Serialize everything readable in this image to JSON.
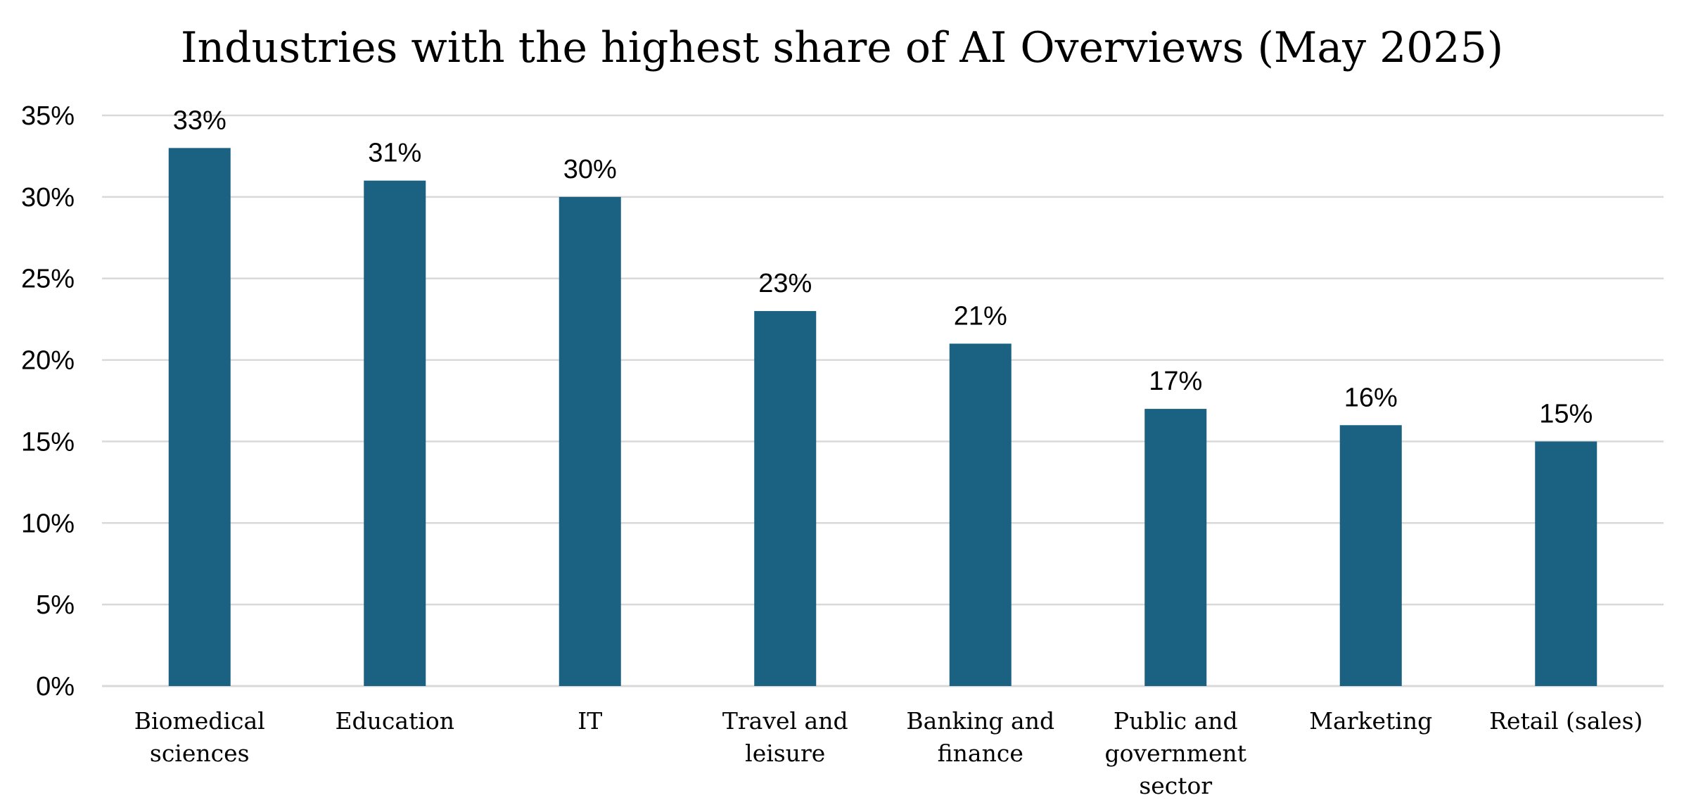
{
  "chart_data": {
    "type": "bar",
    "title": "Industries with the highest share of AI Overviews (May 2025)",
    "xlabel": "",
    "ylabel": "",
    "categories": [
      [
        "Biomedical",
        "sciences"
      ],
      [
        "Education"
      ],
      [
        "IT"
      ],
      [
        "Travel and",
        "leisure"
      ],
      [
        "Banking and",
        "finance"
      ],
      [
        "Public and",
        "government",
        "sector"
      ],
      [
        "Marketing"
      ],
      [
        "Retail (sales)"
      ]
    ],
    "values": [
      33,
      31,
      30,
      23,
      21,
      17,
      16,
      15
    ],
    "data_labels": [
      "33%",
      "31%",
      "30%",
      "23%",
      "21%",
      "17%",
      "16%",
      "15%"
    ],
    "ylim": [
      0,
      35
    ],
    "y_ticks": [
      0,
      5,
      10,
      15,
      20,
      25,
      30,
      35
    ],
    "y_tick_labels": [
      "0%",
      "5%",
      "10%",
      "15%",
      "20%",
      "25%",
      "30%",
      "35%"
    ],
    "grid": true,
    "legend": "none",
    "colors": {
      "bar": "#1a6182",
      "grid": "#d9d9d9",
      "text": "#000000"
    }
  }
}
